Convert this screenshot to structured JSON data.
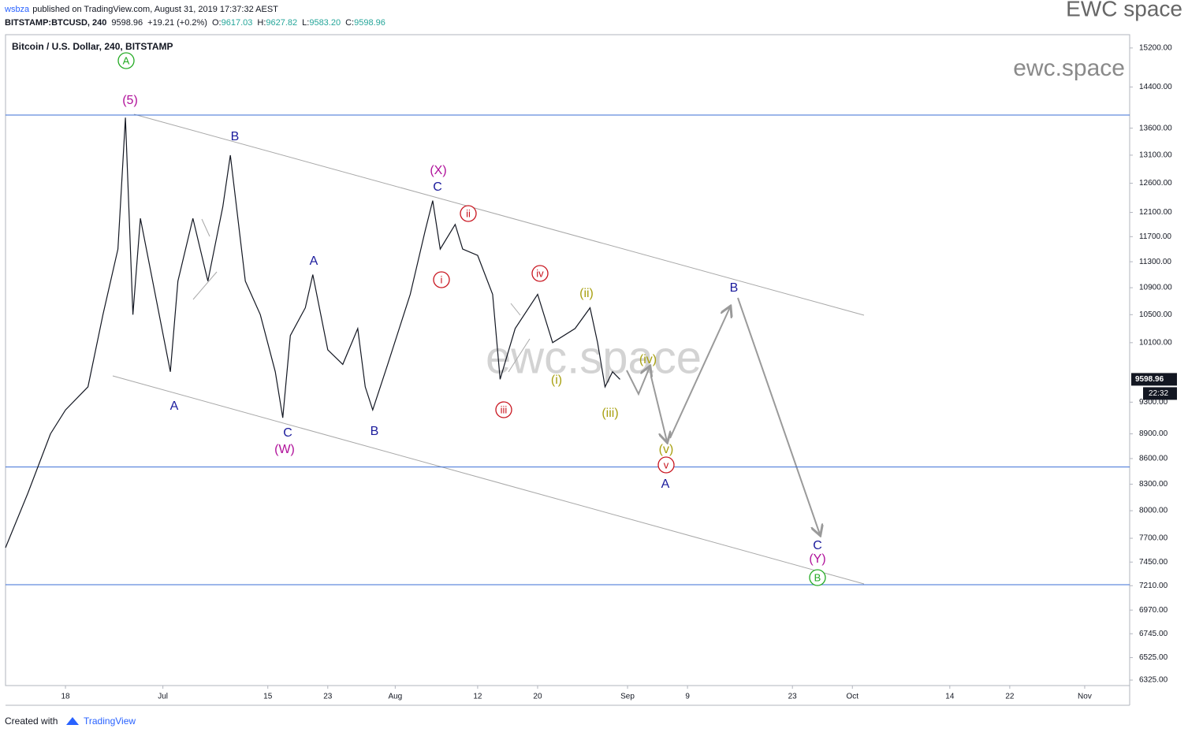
{
  "header": {
    "publisher": "wsbza",
    "published": "published on TradingView.com, August 31, 2019 17:37:32 AEST",
    "symbol": "BITSTAMP:BTCUSD, 240",
    "price": "9598.96",
    "change": "+19.21 (+0.2%)",
    "ohlc": [
      {
        "label": "O:",
        "value": "9617.03"
      },
      {
        "label": "H:",
        "value": "9627.82"
      },
      {
        "label": "L:",
        "value": "9583.20"
      },
      {
        "label": "C:",
        "value": "9598.96"
      }
    ],
    "brand": "EWC space"
  },
  "chart_data": {
    "type": "line",
    "title": "Bitcoin / U.S. Dollar, 240, BITSTAMP",
    "watermark": "ewc.space",
    "color": "#131722",
    "log_scale": true,
    "x": [
      "2019-06-10",
      "2019-06-13",
      "2019-06-16",
      "2019-06-18",
      "2019-06-21",
      "2019-06-23",
      "2019-06-25",
      "2019-06-26",
      "2019-06-27",
      "2019-06-28",
      "2019-07-02",
      "2019-07-03",
      "2019-07-05",
      "2019-07-07",
      "2019-07-09",
      "2019-07-10",
      "2019-07-12",
      "2019-07-14",
      "2019-07-16",
      "2019-07-17",
      "2019-07-18",
      "2019-07-20",
      "2019-07-21",
      "2019-07-23",
      "2019-07-25",
      "2019-07-27",
      "2019-07-28",
      "2019-07-29",
      "2019-07-31",
      "2019-08-03",
      "2019-08-05",
      "2019-08-06",
      "2019-08-07",
      "2019-08-09",
      "2019-08-10",
      "2019-08-12",
      "2019-08-14",
      "2019-08-15",
      "2019-08-17",
      "2019-08-20",
      "2019-08-22",
      "2019-08-25",
      "2019-08-27",
      "2019-08-28",
      "2019-08-29",
      "2019-08-30",
      "2019-08-31"
    ],
    "values": [
      7600,
      8200,
      8900,
      9200,
      9500,
      10500,
      11500,
      13800,
      10500,
      12000,
      9700,
      11000,
      12000,
      11000,
      12200,
      13100,
      11000,
      10500,
      9700,
      9100,
      10200,
      10600,
      11100,
      10000,
      9800,
      10300,
      9500,
      9200,
      9800,
      10800,
      11800,
      12300,
      11500,
      11900,
      11500,
      11400,
      10800,
      9600,
      10300,
      10800,
      10100,
      10300,
      10600,
      10100,
      9500,
      9700,
      9598.96
    ],
    "last_price": 9598.96,
    "last_price_time": "22:32",
    "hlines": [
      13850,
      8500,
      7220
    ],
    "hline_color": "#3b6fd6",
    "xlim": [
      "2019-06-10",
      "2019-11-07"
    ],
    "xticks": [
      {
        "value": "2019-06-18",
        "label": "18"
      },
      {
        "value": "2019-07-01",
        "label": "Jul"
      },
      {
        "value": "2019-07-15",
        "label": "15"
      },
      {
        "value": "2019-07-23",
        "label": "23"
      },
      {
        "value": "2019-08-01",
        "label": "Aug"
      },
      {
        "value": "2019-08-12",
        "label": "12"
      },
      {
        "value": "2019-08-20",
        "label": "20"
      },
      {
        "value": "2019-09-01",
        "label": "Sep"
      },
      {
        "value": "2019-09-09",
        "label": "9"
      },
      {
        "value": "2019-09-23",
        "label": "23"
      },
      {
        "value": "2019-10-01",
        "label": "Oct"
      },
      {
        "value": "2019-10-14",
        "label": "14"
      },
      {
        "value": "2019-10-22",
        "label": "22"
      },
      {
        "value": "2019-11-01",
        "label": "Nov"
      }
    ],
    "ylim": [
      6277,
      15483
    ],
    "yticks": [
      {
        "value": 15200,
        "label": "15200.00"
      },
      {
        "value": 14400,
        "label": "14400.00"
      },
      {
        "value": 13600,
        "label": "13600.00"
      },
      {
        "value": 13100,
        "label": "13100.00"
      },
      {
        "value": 12600,
        "label": "12600.00"
      },
      {
        "value": 12100,
        "label": "12100.00"
      },
      {
        "value": 11700,
        "label": "11700.00"
      },
      {
        "value": 11300,
        "label": "11300.00"
      },
      {
        "value": 10900,
        "label": "10900.00"
      },
      {
        "value": 10500,
        "label": "10500.00"
      },
      {
        "value": 10100,
        "label": "10100.00"
      },
      {
        "value": 9300,
        "label": "9300.00"
      },
      {
        "value": 8900,
        "label": "8900.00"
      },
      {
        "value": 8600,
        "label": "8600.00"
      },
      {
        "value": 8300,
        "label": "8300.00"
      },
      {
        "value": 8000,
        "label": "8000.00"
      },
      {
        "value": 7700,
        "label": "7700.00"
      },
      {
        "value": 7450,
        "label": "7450.00"
      },
      {
        "value": 7210,
        "label": "7210.00"
      },
      {
        "value": 6970,
        "label": "6970.00"
      },
      {
        "value": 6745,
        "label": "6745.00"
      },
      {
        "value": 6525,
        "label": "6525.00"
      },
      {
        "value": 6325,
        "label": "6325.00"
      }
    ],
    "annotations": [
      {
        "text": "A",
        "color": "#22aa22",
        "circle": true
      },
      {
        "text": "(5)",
        "color": "#b0109a",
        "circle": false
      },
      {
        "text": "B",
        "color": "#1a1a9c",
        "circle": false
      },
      {
        "text": "A",
        "color": "#1a1a9c",
        "circle": false
      },
      {
        "text": "C",
        "color": "#1a1a9c",
        "circle": false
      },
      {
        "text": "(W)",
        "color": "#b0109a",
        "circle": false
      },
      {
        "text": "A",
        "color": "#1a1a9c",
        "circle": false
      },
      {
        "text": "B",
        "color": "#1a1a9c",
        "circle": false
      },
      {
        "text": "(X)",
        "color": "#b0109a",
        "circle": false
      },
      {
        "text": "C",
        "color": "#1a1a9c",
        "circle": false
      },
      {
        "text": "ii",
        "color": "#c8141e",
        "circle": true
      },
      {
        "text": "i",
        "color": "#c8141e",
        "circle": true
      },
      {
        "text": "iii",
        "color": "#c8141e",
        "circle": true
      },
      {
        "text": "iv",
        "color": "#c8141e",
        "circle": true
      },
      {
        "text": "(ii)",
        "color": "#a8a010",
        "circle": false
      },
      {
        "text": "(i)",
        "color": "#a8a010",
        "circle": false
      },
      {
        "text": "(iii)",
        "color": "#a8a010",
        "circle": false
      },
      {
        "text": "(iv)",
        "color": "#a8a010",
        "circle": false
      },
      {
        "text": "(v)",
        "color": "#a8a010",
        "circle": false
      },
      {
        "text": "v",
        "color": "#c8141e",
        "circle": true
      },
      {
        "text": "A",
        "color": "#1a1a9c",
        "circle": false
      },
      {
        "text": "B",
        "color": "#1a1a9c",
        "circle": false
      },
      {
        "text": "C",
        "color": "#1a1a9c",
        "circle": false
      },
      {
        "text": "(Y)",
        "color": "#b0109a",
        "circle": false
      },
      {
        "text": "B",
        "color": "#22aa22",
        "circle": true
      }
    ]
  },
  "footer": {
    "created": "Created with",
    "brand": "TradingView"
  }
}
